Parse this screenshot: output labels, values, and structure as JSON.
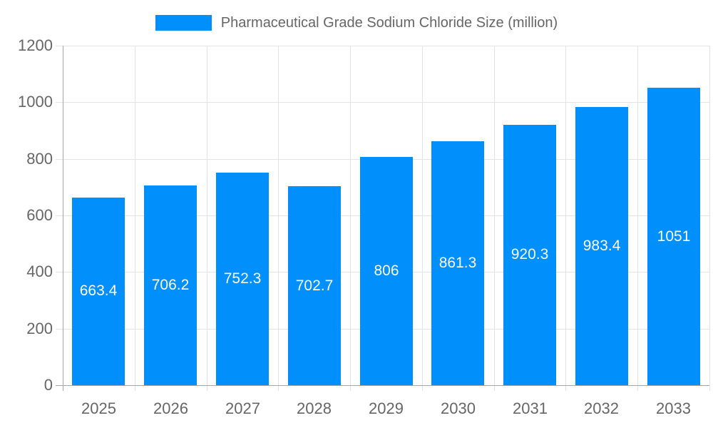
{
  "chart_data": {
    "type": "bar",
    "title": "Pharmaceutical Grade Sodium Chloride Size (million)",
    "categories": [
      "2025",
      "2026",
      "2027",
      "2028",
      "2029",
      "2030",
      "2031",
      "2032",
      "2033"
    ],
    "values": [
      663.4,
      706.2,
      752.3,
      702.7,
      806,
      861.3,
      920.3,
      983.4,
      1051
    ],
    "value_labels": [
      "663.4",
      "706.2",
      "752.3",
      "702.7",
      "806",
      "861.3",
      "920.3",
      "983.4",
      "1051"
    ],
    "xlabel": "",
    "ylabel": "",
    "ylim": [
      0,
      1200
    ],
    "yticks": [
      0,
      200,
      400,
      600,
      800,
      1000,
      1200
    ],
    "grid": true,
    "legend_position": "top",
    "value_label_position": "center-inside",
    "colors": {
      "bar": "#008FFB",
      "axis_text": "#666666",
      "value_text": "#FFFFFF",
      "gridline": "#E3E3E3",
      "axis_line": "#A6A6A6"
    }
  }
}
